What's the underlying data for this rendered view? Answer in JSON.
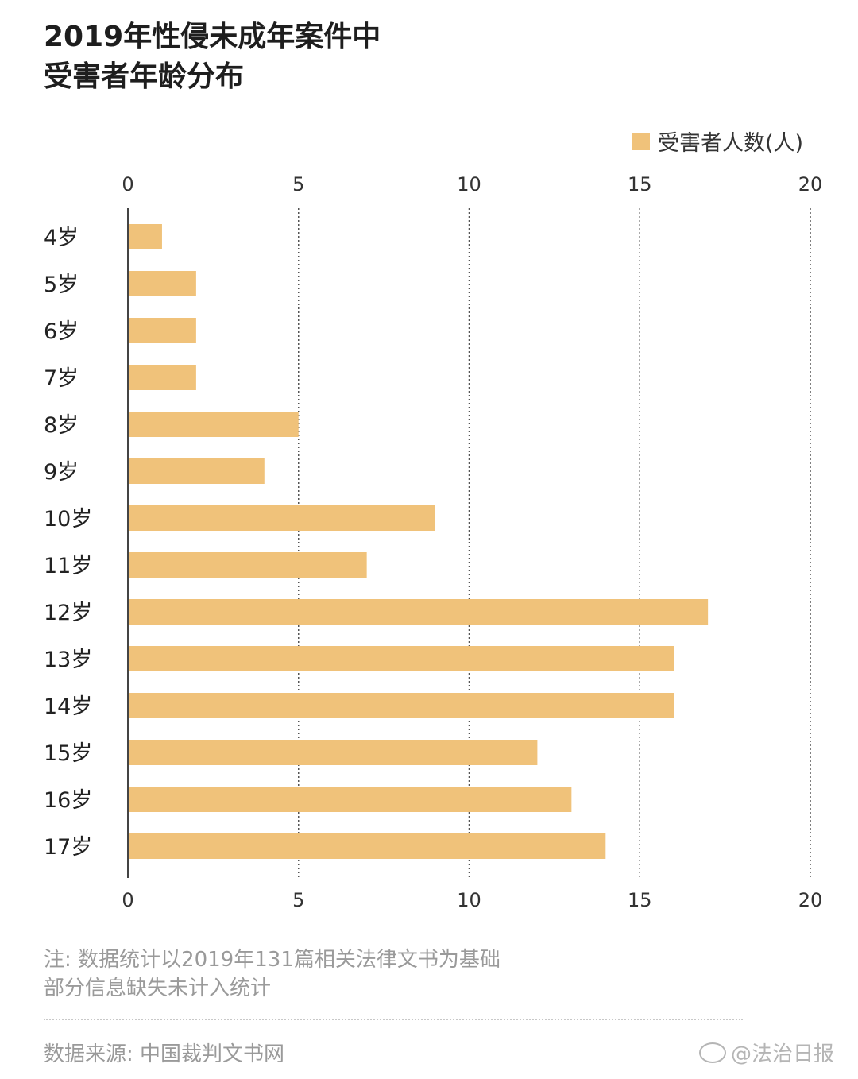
{
  "title": {
    "line1": "2019年性侵未成年案件中",
    "line2": "受害者年龄分布"
  },
  "note": {
    "line1": "注: 数据统计以2019年131篇相关法律文书为基础",
    "line2": "部分信息缺失未计入统计"
  },
  "source": "数据来源: 中国裁判文书网",
  "watermark": "@法治日报",
  "colors": {
    "bar": "#f0c27a",
    "grid": "#555555"
  },
  "chart_data": {
    "type": "bar",
    "orientation": "horizontal",
    "categories": [
      "4岁",
      "5岁",
      "6岁",
      "7岁",
      "8岁",
      "9岁",
      "10岁",
      "11岁",
      "12岁",
      "13岁",
      "14岁",
      "15岁",
      "16岁",
      "17岁"
    ],
    "series": [
      {
        "name": "受害者人数(人)",
        "values": [
          1,
          2,
          2,
          2,
          5,
          4,
          9,
          7,
          17,
          16,
          16,
          12,
          13,
          14
        ]
      }
    ],
    "xlim": [
      0,
      20
    ],
    "xticks": [
      0,
      5,
      10,
      15,
      20
    ],
    "grid": true,
    "legend": "top-right"
  }
}
